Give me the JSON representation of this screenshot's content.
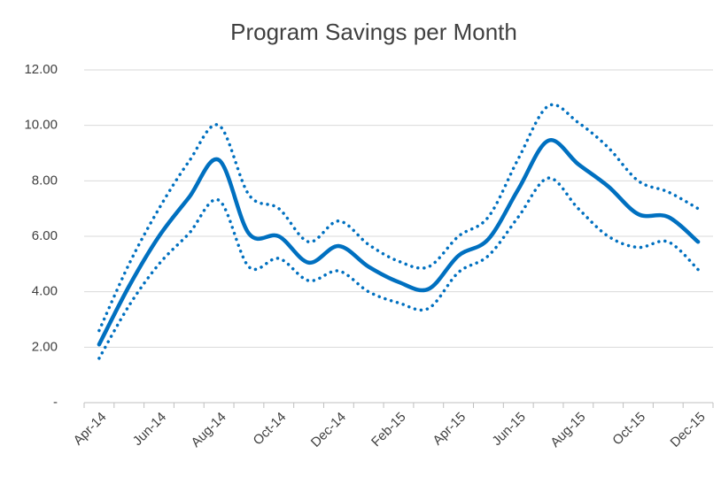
{
  "chart_data": {
    "type": "line",
    "title": "Program Savings per Month",
    "categories": [
      "Apr-14",
      null,
      "Jun-14",
      null,
      "Aug-14",
      null,
      "Oct-14",
      null,
      "Dec-14",
      null,
      "Feb-15",
      null,
      "Apr-15",
      null,
      "Jun-15",
      null,
      "Aug-15",
      null,
      "Oct-15",
      null,
      "Dec-15"
    ],
    "series": [
      {
        "color": "#0070c0",
        "style": "solid",
        "values": [
          2.1,
          4.2,
          6.0,
          7.4,
          8.75,
          6.1,
          6.0,
          5.05,
          5.65,
          4.9,
          4.35,
          4.1,
          5.3,
          5.9,
          7.7,
          9.45,
          8.6,
          7.8,
          6.8,
          6.7,
          5.8
        ]
      },
      {
        "color": "#0070c0",
        "style": "dotted",
        "values": [
          2.6,
          5.0,
          7.0,
          8.7,
          10.0,
          7.5,
          7.0,
          5.8,
          6.55,
          5.7,
          5.1,
          4.9,
          6.0,
          6.7,
          8.8,
          10.7,
          10.1,
          9.2,
          8.0,
          7.6,
          7.0
        ]
      },
      {
        "color": "#0070c0",
        "style": "dotted",
        "values": [
          1.6,
          3.5,
          5.0,
          6.1,
          7.3,
          4.9,
          5.2,
          4.4,
          4.75,
          4.0,
          3.6,
          3.4,
          4.7,
          5.3,
          6.7,
          8.1,
          7.0,
          6.0,
          5.6,
          5.8,
          4.8
        ]
      }
    ],
    "ylim": [
      0,
      12
    ],
    "yticks": [
      {
        "value": 0,
        "label": "-"
      },
      {
        "value": 2,
        "label": "2.00"
      },
      {
        "value": 4,
        "label": "4.00"
      },
      {
        "value": 6,
        "label": "6.00"
      },
      {
        "value": 8,
        "label": "8.00"
      },
      {
        "value": 10,
        "label": "10.00"
      },
      {
        "value": 12,
        "label": "12.00"
      }
    ],
    "grid": true
  }
}
